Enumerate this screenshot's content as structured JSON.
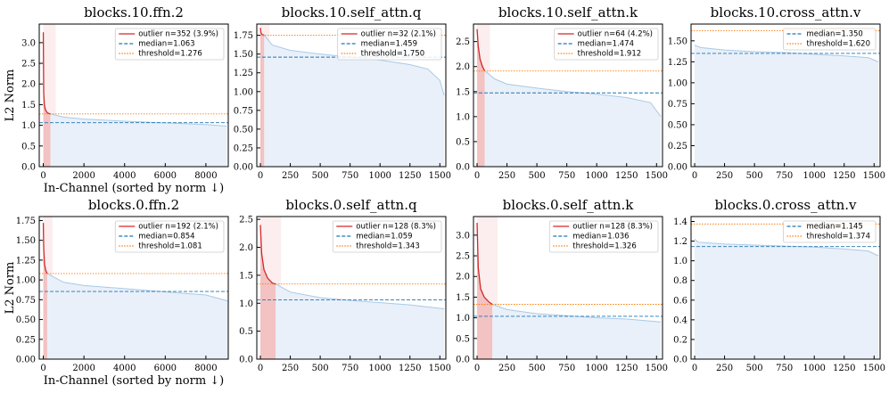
{
  "chart_data": [
    {
      "type": "line",
      "title": "blocks.10.ffn.2",
      "xlabel": "In-Channel (sorted by norm ↓)",
      "ylabel": "L2 Norm",
      "xlim": [
        -200,
        9100
      ],
      "ylim": [
        0,
        3.45
      ],
      "xticks": [
        0,
        2000,
        4000,
        6000,
        8000
      ],
      "yticks": [
        {
          "value": 0,
          "label": "0.0"
        },
        0.5,
        {
          "value": 1,
          "label": "1.0"
        },
        1.5,
        {
          "value": 2,
          "label": "2.0"
        },
        2.5,
        {
          "value": 3,
          "label": "3.0"
        }
      ],
      "series": [
        {
          "name": "outlier  n=352 (3.9%)",
          "color": "#d62728",
          "x": [
            0,
            20,
            50,
            100,
            200,
            352
          ],
          "values": [
            3.25,
            1.8,
            1.5,
            1.38,
            1.3,
            1.276
          ]
        },
        {
          "color": "#a9c9e6",
          "x": [
            352,
            1000,
            2000,
            4000,
            6000,
            8000,
            9026
          ],
          "values": [
            1.276,
            1.2,
            1.15,
            1.1,
            1.06,
            1.02,
            0.98
          ]
        }
      ],
      "hlines": [
        {
          "name": "median=1.063",
          "value": 1.063,
          "color": "#1f77b4",
          "style": "dashed"
        },
        {
          "name": "threshold=1.276",
          "value": 1.276,
          "color": "#ff7f0e",
          "style": "dotted"
        }
      ]
    },
    {
      "type": "line",
      "title": "blocks.10.self_attn.q",
      "xlim": [
        -30,
        1550
      ],
      "ylim": [
        0,
        1.9
      ],
      "xticks": [
        0,
        250,
        500,
        750,
        1000,
        1250,
        1500
      ],
      "yticks": [
        {
          "value": 0,
          "label": "0.00"
        },
        0.25,
        {
          "value": 0.5,
          "label": "0.50"
        },
        0.75,
        {
          "value": 1,
          "label": "1.00"
        },
        1.25,
        {
          "value": 1.5,
          "label": "1.50"
        },
        1.75
      ],
      "series": [
        {
          "name": "outlier  n=32 (2.1%)",
          "color": "#d62728",
          "x": [
            0,
            5,
            15,
            32
          ],
          "values": [
            1.85,
            1.78,
            1.76,
            1.75
          ]
        },
        {
          "color": "#a9c9e6",
          "x": [
            32,
            100,
            250,
            500,
            750,
            1000,
            1250,
            1400,
            1500,
            1536
          ],
          "values": [
            1.75,
            1.62,
            1.55,
            1.5,
            1.46,
            1.42,
            1.36,
            1.3,
            1.15,
            0.95
          ]
        }
      ],
      "hlines": [
        {
          "name": "median=1.459",
          "value": 1.459,
          "color": "#1f77b4",
          "style": "dashed"
        },
        {
          "name": "threshold=1.750",
          "value": 1.75,
          "color": "#ff7f0e",
          "style": "dotted"
        }
      ]
    },
    {
      "type": "line",
      "title": "blocks.10.self_attn.k",
      "xlim": [
        -30,
        1550
      ],
      "ylim": [
        0,
        2.85
      ],
      "xticks": [
        0,
        250,
        500,
        750,
        1000,
        1250,
        1500
      ],
      "yticks": [
        {
          "value": 0,
          "label": "0.0"
        },
        0.5,
        {
          "value": 1,
          "label": "1.0"
        },
        1.5,
        {
          "value": 2,
          "label": "2.0"
        },
        2.5
      ],
      "series": [
        {
          "name": "outlier  n=64 (4.2%)",
          "color": "#d62728",
          "x": [
            0,
            10,
            25,
            45,
            64
          ],
          "values": [
            2.75,
            2.4,
            2.15,
            2.0,
            1.912
          ]
        },
        {
          "color": "#a9c9e6",
          "x": [
            64,
            150,
            250,
            500,
            750,
            1000,
            1250,
            1450,
            1536
          ],
          "values": [
            1.912,
            1.75,
            1.65,
            1.57,
            1.5,
            1.45,
            1.38,
            1.28,
            1.0
          ]
        }
      ],
      "hlines": [
        {
          "name": "median=1.474",
          "value": 1.474,
          "color": "#1f77b4",
          "style": "dashed"
        },
        {
          "name": "threshold=1.912",
          "value": 1.912,
          "color": "#ff7f0e",
          "style": "dotted"
        }
      ]
    },
    {
      "type": "line",
      "title": "blocks.10.cross_attn.v",
      "xlim": [
        -30,
        1550
      ],
      "ylim": [
        0,
        1.7
      ],
      "xticks": [
        0,
        250,
        500,
        750,
        1000,
        1250,
        1500
      ],
      "yticks": [
        {
          "value": 0,
          "label": "0.00"
        },
        0.25,
        {
          "value": 0.5,
          "label": "0.50"
        },
        0.75,
        {
          "value": 1,
          "label": "1.00"
        },
        1.25,
        {
          "value": 1.5,
          "label": "1.50"
        }
      ],
      "series": [
        {
          "color": "#a9c9e6",
          "x": [
            0,
            50,
            250,
            500,
            750,
            1000,
            1250,
            1450,
            1536
          ],
          "values": [
            1.45,
            1.42,
            1.39,
            1.37,
            1.36,
            1.34,
            1.32,
            1.3,
            1.25
          ]
        }
      ],
      "hlines": [
        {
          "name": "median=1.350",
          "value": 1.35,
          "color": "#1f77b4",
          "style": "dashed"
        },
        {
          "name": "threshold=1.620",
          "value": 1.62,
          "color": "#ff7f0e",
          "style": "dotted"
        }
      ]
    },
    {
      "type": "line",
      "title": "blocks.0.ffn.2",
      "xlabel": "In-Channel (sorted by norm ↓)",
      "ylabel": "L2 Norm",
      "xlim": [
        -200,
        9100
      ],
      "ylim": [
        0,
        1.8
      ],
      "xticks": [
        0,
        2000,
        4000,
        6000,
        8000
      ],
      "yticks": [
        {
          "value": 0,
          "label": "0.00"
        },
        0.25,
        {
          "value": 0.5,
          "label": "0.50"
        },
        0.75,
        {
          "value": 1,
          "label": "1.00"
        },
        1.25,
        {
          "value": 1.5,
          "label": "1.50"
        },
        1.75
      ],
      "series": [
        {
          "name": "outlier  n=192 (2.1%)",
          "color": "#d62728",
          "x": [
            0,
            20,
            60,
            120,
            192
          ],
          "values": [
            1.72,
            1.4,
            1.2,
            1.12,
            1.081
          ]
        },
        {
          "color": "#a9c9e6",
          "x": [
            192,
            1000,
            2000,
            4000,
            6000,
            8000,
            9143
          ],
          "values": [
            1.081,
            0.97,
            0.93,
            0.89,
            0.85,
            0.81,
            0.73
          ]
        }
      ],
      "hlines": [
        {
          "name": "median=0.854",
          "value": 0.854,
          "color": "#1f77b4",
          "style": "dashed"
        },
        {
          "name": "threshold=1.081",
          "value": 1.081,
          "color": "#ff7f0e",
          "style": "dotted"
        }
      ]
    },
    {
      "type": "line",
      "title": "blocks.0.self_attn.q",
      "xlim": [
        -30,
        1550
      ],
      "ylim": [
        0,
        2.55
      ],
      "xticks": [
        0,
        250,
        500,
        750,
        1000,
        1250,
        1500
      ],
      "yticks": [
        {
          "value": 0,
          "label": "0.0"
        },
        0.5,
        {
          "value": 1,
          "label": "1.0"
        },
        1.5,
        {
          "value": 2,
          "label": "2.0"
        },
        2.5
      ],
      "series": [
        {
          "name": "outlier  n=128 (8.3%)",
          "color": "#d62728",
          "x": [
            0,
            10,
            30,
            60,
            100,
            128
          ],
          "values": [
            2.4,
            1.9,
            1.6,
            1.45,
            1.36,
            1.343
          ]
        },
        {
          "color": "#a9c9e6",
          "x": [
            128,
            250,
            500,
            750,
            1000,
            1250,
            1536
          ],
          "values": [
            1.343,
            1.2,
            1.1,
            1.05,
            1.01,
            0.97,
            0.9
          ]
        }
      ],
      "hlines": [
        {
          "name": "median=1.059",
          "value": 1.059,
          "color": "#1f77b4",
          "style": "dashed"
        },
        {
          "name": "threshold=1.343",
          "value": 1.343,
          "color": "#ff7f0e",
          "style": "dotted"
        }
      ]
    },
    {
      "type": "line",
      "title": "blocks.0.self_attn.k",
      "xlim": [
        -30,
        1550
      ],
      "ylim": [
        0,
        3.45
      ],
      "xticks": [
        0,
        250,
        500,
        750,
        1000,
        1250,
        1500
      ],
      "yticks": [
        {
          "value": 0,
          "label": "0.0"
        },
        0.5,
        {
          "value": 1,
          "label": "1.0"
        },
        1.5,
        {
          "value": 2,
          "label": "2.0"
        },
        2.5,
        {
          "value": 3,
          "label": "3.0"
        }
      ],
      "series": [
        {
          "name": "outlier  n=128 (8.3%)",
          "color": "#d62728",
          "x": [
            0,
            10,
            30,
            60,
            100,
            128
          ],
          "values": [
            3.3,
            2.2,
            1.7,
            1.5,
            1.38,
            1.326
          ]
        },
        {
          "color": "#a9c9e6",
          "x": [
            128,
            250,
            500,
            750,
            1000,
            1250,
            1536
          ],
          "values": [
            1.326,
            1.2,
            1.1,
            1.05,
            1.0,
            0.97,
            0.9
          ]
        }
      ],
      "hlines": [
        {
          "name": "median=1.036",
          "value": 1.036,
          "color": "#1f77b4",
          "style": "dashed"
        },
        {
          "name": "threshold=1.326",
          "value": 1.326,
          "color": "#ff7f0e",
          "style": "dotted"
        }
      ]
    },
    {
      "type": "line",
      "title": "blocks.0.cross_attn.v",
      "xlim": [
        -30,
        1550
      ],
      "ylim": [
        0,
        1.45
      ],
      "xticks": [
        0,
        250,
        500,
        750,
        1000,
        1250,
        1500
      ],
      "yticks": [
        {
          "value": 0,
          "label": "0.0"
        },
        0.2,
        0.4,
        0.6,
        0.8,
        {
          "value": 1,
          "label": "1.0"
        },
        1.2,
        1.4
      ],
      "series": [
        {
          "color": "#a9c9e6",
          "x": [
            0,
            30,
            250,
            500,
            750,
            1000,
            1250,
            1450,
            1536
          ],
          "values": [
            1.22,
            1.19,
            1.17,
            1.16,
            1.15,
            1.14,
            1.12,
            1.1,
            1.05
          ]
        }
      ],
      "hlines": [
        {
          "name": "median=1.145",
          "value": 1.145,
          "color": "#1f77b4",
          "style": "dashed"
        },
        {
          "name": "threshold=1.374",
          "value": 1.374,
          "color": "#ff7f0e",
          "style": "dotted"
        }
      ]
    }
  ]
}
